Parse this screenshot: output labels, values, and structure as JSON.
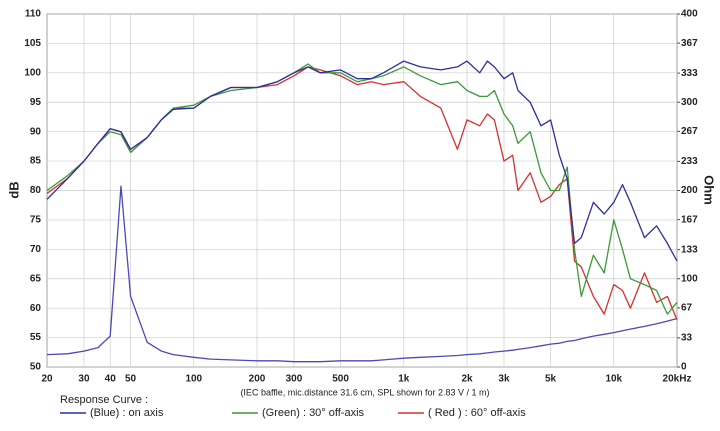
{
  "chart_data": {
    "type": "line",
    "ylabel": "dB",
    "y2label": "Ohm",
    "note": "(IEC baffle, mic.distance 31.6 cm, SPL shown for 2.83 V / 1 m)",
    "legend_title": "Response Curve :",
    "xscale": "log",
    "grid": true,
    "x": [
      20,
      25,
      30,
      35,
      40,
      45,
      50,
      60,
      70,
      80,
      100,
      120,
      150,
      200,
      250,
      300,
      350,
      400,
      500,
      600,
      700,
      800,
      1000,
      1200,
      1500,
      1800,
      2000,
      2300,
      2500,
      2700,
      3000,
      3300,
      3500,
      4000,
      4500,
      5000,
      5500,
      6000,
      6500,
      7000,
      8000,
      9000,
      10000,
      11000,
      12000,
      14000,
      16000,
      18000,
      20000
    ],
    "xlim": [
      20,
      20000
    ],
    "xticks": [
      20,
      30,
      40,
      50,
      100,
      200,
      300,
      500,
      {
        "value": 1000,
        "label": "1k"
      },
      {
        "value": 2000,
        "label": "2k"
      },
      {
        "value": 3000,
        "label": "3k"
      },
      {
        "value": 5000,
        "label": "5k"
      },
      {
        "value": 10000,
        "label": "10k"
      },
      {
        "value": 20000,
        "label": "20kHz"
      }
    ],
    "ylim": [
      50,
      110
    ],
    "yticks": [
      50,
      55,
      60,
      65,
      70,
      75,
      80,
      85,
      90,
      95,
      100,
      105,
      110
    ],
    "y2lim": [
      0,
      400
    ],
    "y2ticks": [
      0,
      33,
      67,
      100,
      133,
      167,
      200,
      233,
      267,
      300,
      333,
      367,
      400
    ],
    "series": [
      {
        "name": "(Blue)  : on axis",
        "color": "#2b2fa3",
        "values": [
          78.5,
          82,
          85,
          88,
          90.5,
          90,
          87,
          89,
          92,
          93.8,
          94,
          96,
          97.5,
          97.5,
          98.5,
          100,
          101,
          100,
          100.5,
          99,
          99,
          100,
          102,
          101,
          100.5,
          101,
          102,
          100,
          102,
          101,
          99,
          100,
          97,
          95,
          91,
          92,
          86,
          82,
          71,
          72,
          78,
          76,
          78,
          81,
          78,
          72,
          74,
          71,
          68
        ]
      },
      {
        "name": "(Green) : 30° off-axis",
        "color": "#3a9a3a",
        "values": [
          80,
          82.5,
          85,
          88,
          90,
          89.5,
          86.5,
          89,
          92,
          94,
          94.5,
          96,
          97,
          97.5,
          98.5,
          100,
          101.5,
          100,
          100,
          98.5,
          99,
          99.5,
          101,
          99.5,
          98,
          98.5,
          97,
          96,
          96,
          97,
          93,
          91,
          88,
          90,
          83,
          80,
          80,
          84,
          70,
          62,
          69,
          66,
          75,
          70,
          65,
          64,
          63,
          59,
          61
        ]
      },
      {
        "name": "( Red ) : 60° off-axis",
        "color": "#d63030",
        "values": [
          79.5,
          82,
          85,
          88,
          90.5,
          90,
          86.5,
          89,
          92,
          94,
          94,
          96,
          97.5,
          97.5,
          98,
          99.5,
          101,
          100.5,
          99.5,
          98,
          98.5,
          98,
          98.5,
          96,
          94,
          87,
          92,
          91,
          93,
          92,
          85,
          86,
          80,
          83,
          78,
          79,
          81,
          82,
          68,
          67,
          62,
          59,
          64,
          63,
          60,
          66,
          61,
          62,
          58
        ]
      },
      {
        "color": "#4a4ab8",
        "axis": "y2",
        "values": [
          14,
          15,
          18,
          22,
          35,
          205,
          80,
          28,
          18,
          14,
          11,
          9,
          8,
          7,
          7,
          6,
          6,
          6,
          7,
          7,
          7,
          8,
          10,
          11,
          12,
          13,
          14,
          15,
          16,
          17,
          18,
          19,
          20,
          22,
          24,
          26,
          27,
          29,
          30,
          32,
          35,
          37,
          39,
          41,
          43,
          46,
          49,
          52,
          55
        ]
      }
    ]
  }
}
